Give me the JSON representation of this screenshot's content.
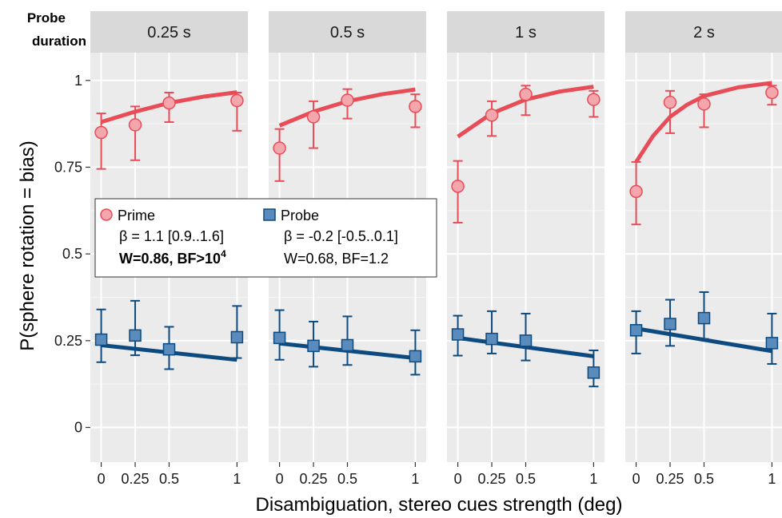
{
  "chart_data": {
    "type": "scatter",
    "facet_title": "Probe duration",
    "xlabel": "Disambiguation, stereo cues strength (deg)",
    "ylabel": "P(sphere rotation = bias)",
    "xlim": [
      -0.08,
      1.08
    ],
    "ylim": [
      -0.1,
      1.08
    ],
    "x_ticks": [
      0,
      0.25,
      0.5,
      1
    ],
    "x_tick_labels": [
      "0",
      "0.25",
      "0.5",
      "1"
    ],
    "y_ticks": [
      0,
      0.25,
      0.5,
      0.75,
      1
    ],
    "y_tick_labels": [
      "0",
      "0.25",
      "0.5",
      "0.75",
      "1"
    ],
    "grid": true,
    "colors": {
      "prime_line": "#e84c57",
      "prime_fill": "#f4a6ad",
      "probe_line": "#0d4a80",
      "probe_fill": "#5a8bbd",
      "panel_bg": "#ebebeb",
      "strip_bg": "#d9d9d9"
    },
    "facets": [
      {
        "label": "0.25 s",
        "prime_points": [
          {
            "x": 0,
            "y": 0.85,
            "lo": 0.745,
            "hi": 0.905
          },
          {
            "x": 0.25,
            "y": 0.872,
            "lo": 0.77,
            "hi": 0.925
          },
          {
            "x": 0.5,
            "y": 0.935,
            "lo": 0.88,
            "hi": 0.965
          },
          {
            "x": 1,
            "y": 0.942,
            "lo": 0.855,
            "hi": 0.965
          }
        ],
        "prime_fit": [
          [
            0,
            0.88
          ],
          [
            0.25,
            0.91
          ],
          [
            0.5,
            0.935
          ],
          [
            0.75,
            0.953
          ],
          [
            1,
            0.966
          ]
        ],
        "probe_points": [
          {
            "x": 0,
            "y": 0.253,
            "lo": 0.188,
            "hi": 0.34
          },
          {
            "x": 0.25,
            "y": 0.265,
            "lo": 0.208,
            "hi": 0.365
          },
          {
            "x": 0.5,
            "y": 0.225,
            "lo": 0.168,
            "hi": 0.29
          },
          {
            "x": 1,
            "y": 0.26,
            "lo": 0.2,
            "hi": 0.35
          }
        ],
        "probe_fit": [
          [
            0,
            0.237
          ],
          [
            1,
            0.195
          ]
        ]
      },
      {
        "label": "0.5 s",
        "prime_points": [
          {
            "x": 0,
            "y": 0.805,
            "lo": 0.71,
            "hi": 0.86
          },
          {
            "x": 0.25,
            "y": 0.895,
            "lo": 0.805,
            "hi": 0.94
          },
          {
            "x": 0.5,
            "y": 0.943,
            "lo": 0.89,
            "hi": 0.975
          },
          {
            "x": 1,
            "y": 0.925,
            "lo": 0.865,
            "hi": 0.96
          }
        ],
        "prime_fit": [
          [
            0,
            0.87
          ],
          [
            0.25,
            0.91
          ],
          [
            0.5,
            0.94
          ],
          [
            0.75,
            0.96
          ],
          [
            1,
            0.974
          ]
        ],
        "probe_points": [
          {
            "x": 0,
            "y": 0.258,
            "lo": 0.195,
            "hi": 0.338
          },
          {
            "x": 0.25,
            "y": 0.235,
            "lo": 0.175,
            "hi": 0.305
          },
          {
            "x": 0.5,
            "y": 0.237,
            "lo": 0.18,
            "hi": 0.32
          },
          {
            "x": 1,
            "y": 0.205,
            "lo": 0.152,
            "hi": 0.28
          }
        ],
        "probe_fit": [
          [
            0,
            0.242
          ],
          [
            1,
            0.2
          ]
        ]
      },
      {
        "label": "1 s",
        "prime_points": [
          {
            "x": 0,
            "y": 0.695,
            "lo": 0.59,
            "hi": 0.768
          },
          {
            "x": 0.25,
            "y": 0.9,
            "lo": 0.84,
            "hi": 0.94
          },
          {
            "x": 0.5,
            "y": 0.96,
            "lo": 0.9,
            "hi": 0.985
          },
          {
            "x": 1,
            "y": 0.945,
            "lo": 0.895,
            "hi": 0.97
          }
        ],
        "prime_fit": [
          [
            0,
            0.838
          ],
          [
            0.25,
            0.905
          ],
          [
            0.5,
            0.945
          ],
          [
            0.75,
            0.968
          ],
          [
            1,
            0.982
          ]
        ],
        "probe_points": [
          {
            "x": 0,
            "y": 0.268,
            "lo": 0.207,
            "hi": 0.322
          },
          {
            "x": 0.25,
            "y": 0.255,
            "lo": 0.213,
            "hi": 0.335
          },
          {
            "x": 0.5,
            "y": 0.25,
            "lo": 0.193,
            "hi": 0.328
          },
          {
            "x": 1,
            "y": 0.158,
            "lo": 0.118,
            "hi": 0.222
          }
        ],
        "probe_fit": [
          [
            0,
            0.258
          ],
          [
            1,
            0.205
          ]
        ]
      },
      {
        "label": "2 s",
        "prime_points": [
          {
            "x": 0,
            "y": 0.68,
            "lo": 0.585,
            "hi": 0.765
          },
          {
            "x": 0.25,
            "y": 0.937,
            "lo": 0.848,
            "hi": 0.97
          },
          {
            "x": 0.5,
            "y": 0.932,
            "lo": 0.865,
            "hi": 0.96
          },
          {
            "x": 1,
            "y": 0.965,
            "lo": 0.93,
            "hi": 0.985
          }
        ],
        "prime_fit": [
          [
            0,
            0.765
          ],
          [
            0.125,
            0.84
          ],
          [
            0.25,
            0.895
          ],
          [
            0.375,
            0.93
          ],
          [
            0.5,
            0.955
          ],
          [
            0.75,
            0.98
          ],
          [
            1,
            0.993
          ]
        ],
        "probe_points": [
          {
            "x": 0,
            "y": 0.28,
            "lo": 0.213,
            "hi": 0.335
          },
          {
            "x": 0.25,
            "y": 0.298,
            "lo": 0.235,
            "hi": 0.368
          },
          {
            "x": 0.5,
            "y": 0.315,
            "lo": 0.255,
            "hi": 0.39
          },
          {
            "x": 1,
            "y": 0.243,
            "lo": 0.183,
            "hi": 0.328
          }
        ],
        "probe_fit": [
          [
            0,
            0.285
          ],
          [
            1,
            0.22
          ]
        ]
      }
    ],
    "legend": {
      "placement": "inside first panels, middle-left",
      "prime": {
        "name": "Prime",
        "beta": "β = 1.1 [0.9..1.6]",
        "stats_prefix": "W=0.86, BF>10",
        "stats_exp": "4"
      },
      "probe": {
        "name": "Probe",
        "beta": "β = -0.2 [-0.5..0.1]",
        "stats": "W=0.68, BF=1.2"
      }
    }
  }
}
